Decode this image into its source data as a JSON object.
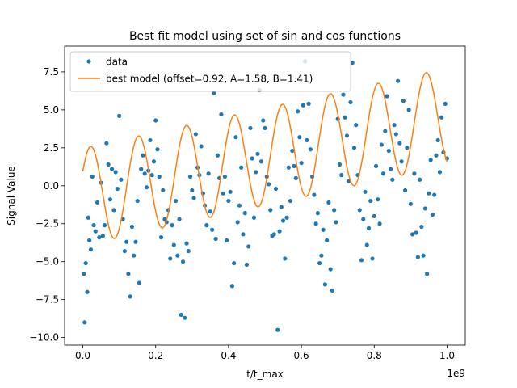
{
  "chart_data": {
    "type": "scatter",
    "title": "Best fit model using set of sin and cos functions",
    "xlabel": "t/t_max",
    "ylabel": "Signal Value",
    "x_offset_text": "1e9",
    "xlim": [
      -0.05,
      1.05
    ],
    "ylim": [
      -10.5,
      9.2
    ],
    "xticks": [
      0.0,
      0.2,
      0.4,
      0.6,
      0.8,
      1.0
    ],
    "xtick_labels": [
      "0.0",
      "0.2",
      "0.4",
      "0.6",
      "0.8",
      "1.0"
    ],
    "yticks": [
      -10.0,
      -7.5,
      -5.0,
      -2.5,
      0.0,
      2.5,
      5.0,
      7.5
    ],
    "ytick_labels": [
      "−10.0",
      "−7.5",
      "−5.0",
      "−2.5",
      "0.0",
      "2.5",
      "5.0",
      "7.5"
    ],
    "grid": false,
    "legend_position": "top-left",
    "series": [
      {
        "name": "data",
        "kind": "scatter",
        "color": "#1f77b4",
        "points": [
          [
            0.003,
            -5.8
          ],
          [
            0.005,
            -9.0
          ],
          [
            0.008,
            -5.1
          ],
          [
            0.012,
            -7.0
          ],
          [
            0.015,
            -2.1
          ],
          [
            0.018,
            -3.6
          ],
          [
            0.022,
            -4.2
          ],
          [
            0.026,
            0.6
          ],
          [
            0.03,
            -2.6
          ],
          [
            0.035,
            -3.0
          ],
          [
            0.04,
            -1.1
          ],
          [
            0.045,
            -3.4
          ],
          [
            0.05,
            0.2
          ],
          [
            0.055,
            -3.3
          ],
          [
            0.06,
            -2.6
          ],
          [
            0.065,
            2.8
          ],
          [
            0.07,
            1.4
          ],
          [
            0.075,
            -0.9
          ],
          [
            0.08,
            1.1
          ],
          [
            0.085,
            -1.6
          ],
          [
            0.09,
            0.9
          ],
          [
            0.095,
            -0.2
          ],
          [
            0.1,
            4.6
          ],
          [
            0.105,
            0.4
          ],
          [
            0.11,
            -2.2
          ],
          [
            0.115,
            -4.3
          ],
          [
            0.12,
            -3.7
          ],
          [
            0.125,
            -5.8
          ],
          [
            0.13,
            -7.3
          ],
          [
            0.135,
            -2.7
          ],
          [
            0.14,
            -4.6
          ],
          [
            0.145,
            -3.7
          ],
          [
            0.15,
            -1.0
          ],
          [
            0.155,
            -6.4
          ],
          [
            0.16,
            1.1
          ],
          [
            0.165,
            2.0
          ],
          [
            0.17,
            0.8
          ],
          [
            0.175,
            -0.1
          ],
          [
            0.18,
            1.0
          ],
          [
            0.185,
            3.0
          ],
          [
            0.19,
            0.7
          ],
          [
            0.195,
            1.6
          ],
          [
            0.2,
            4.3
          ],
          [
            0.205,
            2.4
          ],
          [
            0.21,
            0.6
          ],
          [
            0.215,
            -3.4
          ],
          [
            0.22,
            -0.3
          ],
          [
            0.225,
            -2.2
          ],
          [
            0.23,
            -2.4
          ],
          [
            0.235,
            -1.6
          ],
          [
            0.24,
            -4.8
          ],
          [
            0.245,
            -2.6
          ],
          [
            0.25,
            -3.9
          ],
          [
            0.255,
            -1.0
          ],
          [
            0.26,
            -4.6
          ],
          [
            0.265,
            -2.2
          ],
          [
            0.27,
            -8.5
          ],
          [
            0.275,
            -5.0
          ],
          [
            0.28,
            -8.7
          ],
          [
            0.285,
            -3.8
          ],
          [
            0.29,
            -4.3
          ],
          [
            0.295,
            0.6
          ],
          [
            0.3,
            -0.3
          ],
          [
            0.305,
            -0.8
          ],
          [
            0.31,
            3.4
          ],
          [
            0.315,
            1.2
          ],
          [
            0.32,
            0.7
          ],
          [
            0.325,
            2.6
          ],
          [
            0.33,
            -0.5
          ],
          [
            0.335,
            -1.3
          ],
          [
            0.34,
            -2.6
          ],
          [
            0.345,
            0.8
          ],
          [
            0.35,
            -1.7
          ],
          [
            0.355,
            -2.9
          ],
          [
            0.36,
            6.1
          ],
          [
            0.365,
            -3.5
          ],
          [
            0.37,
            2.0
          ],
          [
            0.375,
            0.5
          ],
          [
            0.38,
            4.7
          ],
          [
            0.385,
            -0.5
          ],
          [
            0.39,
            0.6
          ],
          [
            0.395,
            -3.6
          ],
          [
            0.4,
            -1.0
          ],
          [
            0.405,
            -0.4
          ],
          [
            0.41,
            -6.6
          ],
          [
            0.415,
            -5.1
          ],
          [
            0.42,
            3.2
          ],
          [
            0.425,
            -2.4
          ],
          [
            0.43,
            -1.3
          ],
          [
            0.435,
            1.2
          ],
          [
            0.44,
            -3.2
          ],
          [
            0.445,
            -1.8
          ],
          [
            0.45,
            -5.2
          ],
          [
            0.455,
            -4.0
          ],
          [
            0.46,
            3.8
          ],
          [
            0.465,
            1.8
          ],
          [
            0.47,
            -2.1
          ],
          [
            0.475,
            0.9
          ],
          [
            0.48,
            2.1
          ],
          [
            0.485,
            6.3
          ],
          [
            0.49,
            1.6
          ],
          [
            0.495,
            4.3
          ],
          [
            0.5,
            3.8
          ],
          [
            0.505,
            0.6
          ],
          [
            0.51,
            0.1
          ],
          [
            0.515,
            -1.6
          ],
          [
            0.52,
            -3.3
          ],
          [
            0.525,
            -3.2
          ],
          [
            0.53,
            -0.2
          ],
          [
            0.535,
            -9.5
          ],
          [
            0.54,
            -3.0
          ],
          [
            0.545,
            -1.4
          ],
          [
            0.55,
            -2.3
          ],
          [
            0.555,
            -4.8
          ],
          [
            0.56,
            -2.1
          ],
          [
            0.565,
            1.2
          ],
          [
            0.57,
            -1.0
          ],
          [
            0.575,
            2.3
          ],
          [
            0.58,
            1.3
          ],
          [
            0.585,
            0.5
          ],
          [
            0.59,
            4.9
          ],
          [
            0.595,
            3.2
          ],
          [
            0.6,
            1.5
          ],
          [
            0.605,
            5.3
          ],
          [
            0.61,
            8.2
          ],
          [
            0.615,
            3.0
          ],
          [
            0.62,
            5.4
          ],
          [
            0.625,
            2.4
          ],
          [
            0.63,
            0.6
          ],
          [
            0.635,
            -0.6
          ],
          [
            0.64,
            -2.5
          ],
          [
            0.645,
            -1.8
          ],
          [
            0.65,
            -5.1
          ],
          [
            0.655,
            -4.6
          ],
          [
            0.66,
            -2.9
          ],
          [
            0.665,
            -6.5
          ],
          [
            0.67,
            -3.6
          ],
          [
            0.675,
            -1.1
          ],
          [
            0.68,
            -5.5
          ],
          [
            0.685,
            -6.9
          ],
          [
            0.69,
            -1.6
          ],
          [
            0.695,
            -2.4
          ],
          [
            0.7,
            4.4
          ],
          [
            0.705,
            1.4
          ],
          [
            0.71,
            0.7
          ],
          [
            0.715,
            6.0
          ],
          [
            0.72,
            4.5
          ],
          [
            0.725,
            3.3
          ],
          [
            0.73,
            0.3
          ],
          [
            0.735,
            5.5
          ],
          [
            0.74,
            8.1
          ],
          [
            0.745,
            2.5
          ],
          [
            0.75,
            4.0
          ],
          [
            0.755,
            0.7
          ],
          [
            0.76,
            -1.6
          ],
          [
            0.765,
            -4.9
          ],
          [
            0.77,
            -2.2
          ],
          [
            0.775,
            -0.4
          ],
          [
            0.78,
            -3.9
          ],
          [
            0.785,
            -2.8
          ],
          [
            0.79,
            -1.0
          ],
          [
            0.795,
            -4.8
          ],
          [
            0.8,
            -2.0
          ],
          [
            0.805,
            1.3
          ],
          [
            0.81,
            -0.9
          ],
          [
            0.815,
            -2.5
          ],
          [
            0.82,
            2.7
          ],
          [
            0.825,
            0.8
          ],
          [
            0.83,
            3.6
          ],
          [
            0.835,
            5.9
          ],
          [
            0.84,
            2.3
          ],
          [
            0.845,
            1.1
          ],
          [
            0.85,
            0.4
          ],
          [
            0.855,
            4.0
          ],
          [
            0.86,
            3.4
          ],
          [
            0.865,
            6.9
          ],
          [
            0.87,
            2.8
          ],
          [
            0.875,
            1.6
          ],
          [
            0.88,
            5.6
          ],
          [
            0.885,
            -0.3
          ],
          [
            0.89,
            2.5
          ],
          [
            0.895,
            5.0
          ],
          [
            0.9,
            -1.2
          ],
          [
            0.905,
            -3.2
          ],
          [
            0.91,
            0.8
          ],
          [
            0.915,
            -3.1
          ],
          [
            0.92,
            -4.7
          ],
          [
            0.925,
            0.4
          ],
          [
            0.93,
            -2.7
          ],
          [
            0.935,
            -4.6
          ],
          [
            0.94,
            -1.5
          ],
          [
            0.945,
            -5.8
          ],
          [
            0.95,
            -0.5
          ],
          [
            0.955,
            1.7
          ],
          [
            0.96,
            -1.9
          ],
          [
            0.965,
            -0.6
          ],
          [
            0.97,
            2.0
          ],
          [
            0.975,
            3.0
          ],
          [
            0.98,
            0.9
          ],
          [
            0.985,
            4.5
          ],
          [
            0.99,
            2.2
          ],
          [
            0.995,
            5.4
          ],
          [
            1.0,
            1.8
          ]
        ]
      },
      {
        "name": "best model (offset=0.92, A=1.58, B=1.41)",
        "kind": "line",
        "color": "#ff7f0e",
        "offset": 0.92,
        "A": 1.58,
        "B": 1.41
      }
    ]
  }
}
